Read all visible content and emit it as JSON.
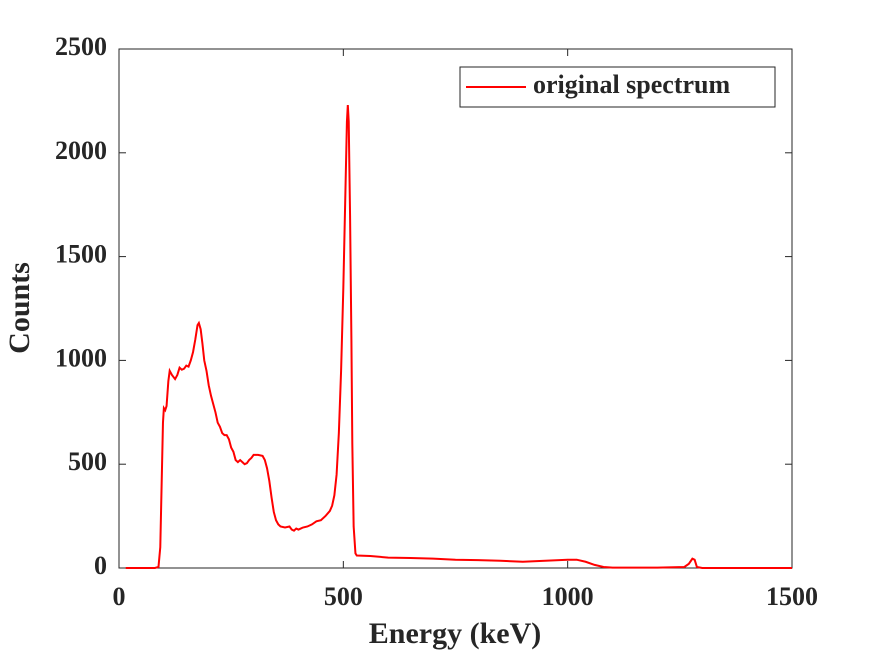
{
  "chart_data": {
    "type": "line",
    "xlabel": "Energy (keV)",
    "ylabel": "Counts",
    "x": [
      15,
      80,
      88,
      92,
      95,
      98,
      100,
      103,
      106,
      110,
      113,
      118,
      125,
      130,
      135,
      140,
      145,
      150,
      155,
      160,
      165,
      170,
      175,
      178,
      182,
      186,
      190,
      195,
      200,
      205,
      210,
      215,
      220,
      225,
      230,
      235,
      240,
      245,
      250,
      255,
      260,
      265,
      270,
      275,
      280,
      285,
      290,
      295,
      300,
      310,
      320,
      325,
      330,
      335,
      340,
      345,
      350,
      355,
      360,
      370,
      380,
      385,
      390,
      395,
      400,
      410,
      420,
      430,
      440,
      450,
      460,
      470,
      475,
      480,
      485,
      490,
      495,
      500,
      505,
      508,
      510,
      512,
      515,
      518,
      520,
      523,
      527,
      530,
      560,
      600,
      650,
      700,
      750,
      800,
      850,
      900,
      950,
      1000,
      1020,
      1040,
      1060,
      1080,
      1100,
      1200,
      1260,
      1270,
      1278,
      1283,
      1288,
      1300,
      1500
    ],
    "series": [
      {
        "name": "original spectrum",
        "color": "#ff0000",
        "values": [
          0,
          0,
          5,
          100,
          400,
          700,
          770,
          760,
          780,
          900,
          950,
          930,
          910,
          930,
          965,
          955,
          960,
          975,
          970,
          1000,
          1040,
          1100,
          1170,
          1180,
          1150,
          1080,
          1000,
          950,
          880,
          830,
          790,
          750,
          700,
          680,
          650,
          640,
          640,
          620,
          580,
          560,
          520,
          510,
          520,
          510,
          500,
          505,
          520,
          530,
          545,
          545,
          540,
          520,
          480,
          420,
          340,
          270,
          230,
          210,
          200,
          195,
          200,
          185,
          180,
          190,
          185,
          195,
          200,
          210,
          225,
          230,
          250,
          275,
          300,
          350,
          450,
          650,
          950,
          1350,
          1850,
          2150,
          2230,
          2150,
          1700,
          1100,
          600,
          200,
          70,
          60,
          58,
          50,
          48,
          45,
          40,
          38,
          35,
          30,
          35,
          40,
          40,
          30,
          15,
          5,
          2,
          2,
          5,
          20,
          45,
          40,
          5,
          0,
          0
        ]
      }
    ],
    "xlim": [
      0,
      1500
    ],
    "xticks": [
      0,
      500,
      1000,
      1500
    ],
    "ylim": [
      0,
      2500
    ],
    "yticks": [
      0,
      500,
      1000,
      1500,
      2000,
      2500
    ],
    "legend": "upper right"
  }
}
